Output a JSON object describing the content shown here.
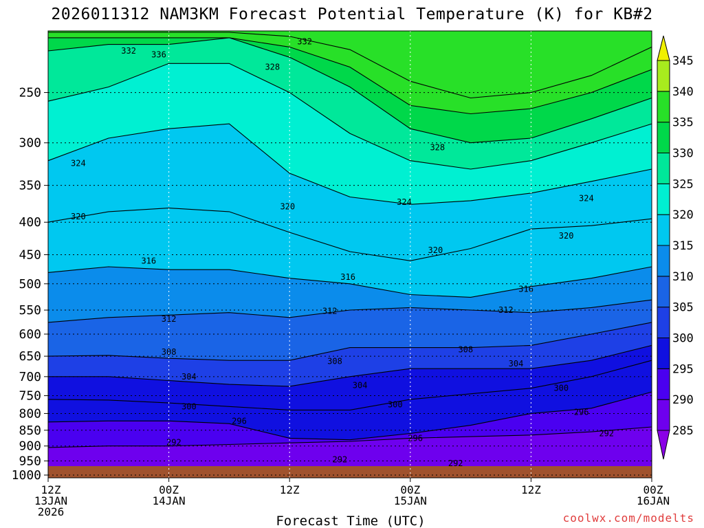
{
  "title": "2026011312 NAM3KM Forecast Potential Temperature (K) for KB#2",
  "credit": "coolwx.com/modelts",
  "chart_data": {
    "type": "heatmap",
    "title": "2026011312 NAM3KM Forecast Potential Temperature (K) for KB#2",
    "xlabel": "Forecast Time (UTC)",
    "ylabel": "",
    "y_scale": "log-pressure",
    "y_ticks": [
      1000,
      950,
      900,
      850,
      800,
      750,
      700,
      650,
      600,
      550,
      500,
      450,
      400,
      350,
      300,
      250
    ],
    "y_range_hPa": [
      1010,
      200
    ],
    "x_ticks": [
      {
        "l1": "12Z",
        "l2": "13JAN",
        "l3": "2026"
      },
      {
        "l1": "00Z",
        "l2": "14JAN",
        "l3": ""
      },
      {
        "l1": "12Z",
        "l2": "",
        "l3": ""
      },
      {
        "l1": "00Z",
        "l2": "15JAN",
        "l3": ""
      },
      {
        "l1": "12Z",
        "l2": "",
        "l3": ""
      },
      {
        "l1": "00Z",
        "l2": "16JAN",
        "l3": ""
      }
    ],
    "x_range_hours": [
      0,
      60
    ],
    "grid": true,
    "legend": "right colorbar",
    "colorbar": {
      "ticks": [
        285,
        290,
        295,
        300,
        305,
        310,
        315,
        320,
        325,
        330,
        335,
        340,
        345
      ],
      "colors": [
        "#8a00e6",
        "#6e00ee",
        "#4a00f0",
        "#1010e0",
        "#1e40e6",
        "#1a64e6",
        "#0b8ceb",
        "#00c8f0",
        "#00f0d2",
        "#00e89a",
        "#00d84a",
        "#28e028",
        "#a8ec1e",
        "#f0f000"
      ]
    },
    "series": [
      {
        "theta": 292,
        "hours": [
          0,
          6,
          12,
          18,
          24,
          30,
          36,
          42,
          48,
          54,
          60
        ],
        "pressure_hPa": [
          905,
          900,
          900,
          895,
          890,
          885,
          875,
          870,
          865,
          855,
          840
        ]
      },
      {
        "theta": 296,
        "hours": [
          0,
          6,
          12,
          18,
          24,
          30,
          36,
          42,
          48,
          54,
          60
        ],
        "pressure_hPa": [
          825,
          822,
          822,
          830,
          875,
          880,
          860,
          835,
          800,
          785,
          740
        ]
      },
      {
        "theta": 300,
        "hours": [
          0,
          6,
          12,
          18,
          24,
          30,
          36,
          42,
          48,
          54,
          60
        ],
        "pressure_hPa": [
          760,
          762,
          770,
          780,
          790,
          790,
          760,
          745,
          730,
          700,
          660
        ]
      },
      {
        "theta": 304,
        "hours": [
          0,
          6,
          12,
          18,
          24,
          30,
          36,
          42,
          48,
          54,
          60
        ],
        "pressure_hPa": [
          700,
          700,
          710,
          720,
          725,
          700,
          680,
          680,
          680,
          660,
          625
        ]
      },
      {
        "theta": 308,
        "hours": [
          0,
          6,
          12,
          18,
          24,
          30,
          36,
          42,
          48,
          54,
          60
        ],
        "pressure_hPa": [
          650,
          648,
          655,
          660,
          660,
          630,
          630,
          630,
          625,
          600,
          575
        ]
      },
      {
        "theta": 312,
        "hours": [
          0,
          6,
          12,
          18,
          24,
          30,
          36,
          42,
          48,
          54,
          60
        ],
        "pressure_hPa": [
          575,
          565,
          560,
          555,
          565,
          550,
          545,
          550,
          555,
          545,
          530
        ]
      },
      {
        "theta": 316,
        "hours": [
          0,
          6,
          12,
          18,
          24,
          30,
          36,
          42,
          48,
          54,
          60
        ],
        "pressure_hPa": [
          480,
          470,
          475,
          475,
          490,
          500,
          520,
          525,
          505,
          490,
          470
        ]
      },
      {
        "theta": 320,
        "hours": [
          0,
          6,
          12,
          18,
          24,
          30,
          36,
          42,
          48,
          54,
          60
        ],
        "pressure_hPa": [
          400,
          385,
          380,
          385,
          415,
          445,
          460,
          440,
          410,
          405,
          395
        ]
      },
      {
        "theta": 324,
        "hours": [
          0,
          6,
          12,
          18,
          24,
          30,
          36,
          42,
          48,
          54,
          60
        ],
        "pressure_hPa": [
          320,
          295,
          285,
          280,
          335,
          365,
          375,
          370,
          360,
          345,
          330
        ]
      },
      {
        "theta": 328,
        "hours": [
          0,
          6,
          12,
          18,
          24,
          30,
          36,
          42,
          48,
          54,
          60
        ],
        "pressure_hPa": [
          258,
          245,
          225,
          225,
          250,
          290,
          320,
          330,
          320,
          300,
          280
        ]
      },
      {
        "theta": 332,
        "hours": [
          0,
          6,
          12,
          18,
          24,
          30,
          36,
          42,
          48,
          54,
          60
        ],
        "pressure_hPa": [
          215,
          210,
          210,
          205,
          220,
          245,
          285,
          300,
          295,
          275,
          255
        ]
      },
      {
        "theta": 336,
        "hours": [
          0,
          6,
          12,
          18,
          24,
          30,
          36,
          42,
          48,
          54,
          60
        ],
        "pressure_hPa": [
          205,
          205,
          205,
          205,
          212,
          228,
          262,
          270,
          265,
          250,
          230
        ]
      },
      {
        "theta": 340,
        "hours": [
          0,
          6,
          12,
          18,
          24,
          30,
          36,
          42,
          48,
          54,
          60
        ],
        "pressure_hPa": [
          201,
          201,
          201,
          201,
          204,
          214,
          240,
          255,
          250,
          235,
          212
        ]
      }
    ],
    "contour_labels": [
      {
        "text": "332",
        "hour": 8.0,
        "p": 215
      },
      {
        "text": "336",
        "hour": 11.0,
        "p": 218
      },
      {
        "text": "332",
        "hour": 25.5,
        "p": 208
      },
      {
        "text": "328",
        "hour": 22.3,
        "p": 228
      },
      {
        "text": "324",
        "hour": 3.0,
        "p": 323
      },
      {
        "text": "328",
        "hour": 38.7,
        "p": 305
      },
      {
        "text": "324",
        "hour": 35.4,
        "p": 372
      },
      {
        "text": "324",
        "hour": 53.5,
        "p": 367
      },
      {
        "text": "320",
        "hour": 3.0,
        "p": 392
      },
      {
        "text": "320",
        "hour": 23.8,
        "p": 378
      },
      {
        "text": "320",
        "hour": 51.5,
        "p": 420
      },
      {
        "text": "320",
        "hour": 38.5,
        "p": 443
      },
      {
        "text": "316",
        "hour": 10.0,
        "p": 460
      },
      {
        "text": "316",
        "hour": 29.8,
        "p": 488
      },
      {
        "text": "316",
        "hour": 47.5,
        "p": 510
      },
      {
        "text": "312",
        "hour": 12.0,
        "p": 568
      },
      {
        "text": "312",
        "hour": 28.0,
        "p": 552
      },
      {
        "text": "312",
        "hour": 45.5,
        "p": 550
      },
      {
        "text": "308",
        "hour": 12.0,
        "p": 640
      },
      {
        "text": "308",
        "hour": 28.5,
        "p": 662
      },
      {
        "text": "308",
        "hour": 41.5,
        "p": 635
      },
      {
        "text": "304",
        "hour": 14.0,
        "p": 700
      },
      {
        "text": "304",
        "hour": 31.0,
        "p": 722
      },
      {
        "text": "304",
        "hour": 46.5,
        "p": 668
      },
      {
        "text": "300",
        "hour": 14.0,
        "p": 780
      },
      {
        "text": "300",
        "hour": 34.5,
        "p": 775
      },
      {
        "text": "300",
        "hour": 51.0,
        "p": 730
      },
      {
        "text": "296",
        "hour": 19.0,
        "p": 822
      },
      {
        "text": "296",
        "hour": 36.5,
        "p": 875
      },
      {
        "text": "296",
        "hour": 53.0,
        "p": 796
      },
      {
        "text": "292",
        "hour": 12.5,
        "p": 888
      },
      {
        "text": "292",
        "hour": 29.0,
        "p": 945
      },
      {
        "text": "292",
        "hour": 40.5,
        "p": 958
      },
      {
        "text": "292",
        "hour": 55.5,
        "p": 860
      }
    ]
  }
}
